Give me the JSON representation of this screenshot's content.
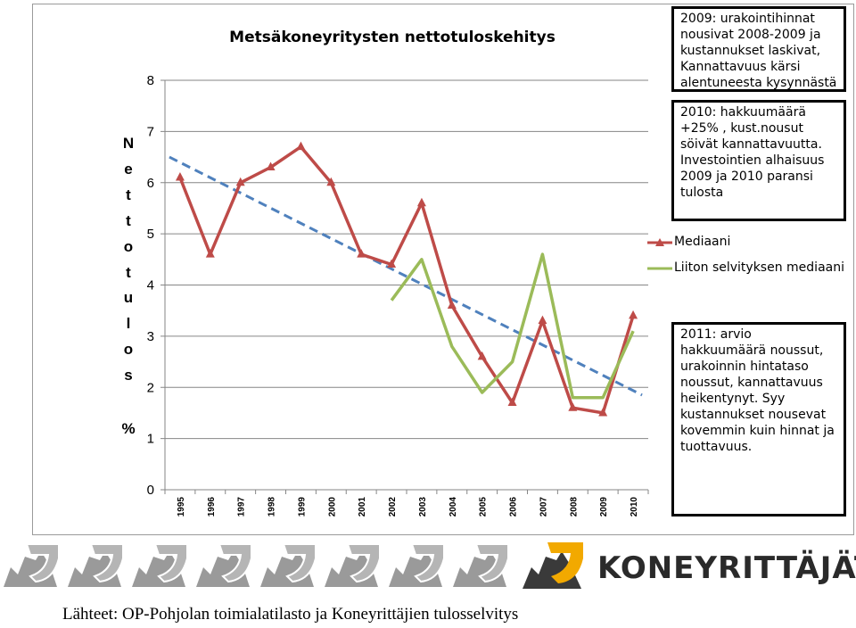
{
  "chart_data": {
    "type": "line",
    "title": "Metsäkoneyritysten nettotuloskehitys",
    "ylabel_letters": [
      "N",
      "e",
      "t",
      "t",
      "o",
      "t",
      "u",
      "l",
      "o",
      "s"
    ],
    "yunit": "%",
    "ylim": [
      0,
      8
    ],
    "yticks": [
      0,
      1,
      2,
      3,
      4,
      5,
      6,
      7,
      8
    ],
    "x": [
      "1995",
      "1996",
      "1997",
      "1998",
      "1999",
      "2000",
      "2001",
      "2002",
      "2003",
      "2004",
      "2005",
      "2006",
      "2007",
      "2008",
      "2009",
      "2010"
    ],
    "grid": true,
    "legend_position": "right",
    "series": [
      {
        "name": "Mediaani",
        "color": "#be4b48",
        "marker": "triangle",
        "values": [
          6.1,
          4.6,
          6.0,
          6.3,
          6.7,
          6.0,
          4.6,
          4.4,
          5.6,
          3.6,
          2.6,
          1.7,
          3.3,
          1.6,
          1.5,
          3.4
        ]
      },
      {
        "name": "Liiton selvityksen mediaani",
        "color": "#9bbb59",
        "marker": "none",
        "values": [
          null,
          null,
          null,
          null,
          null,
          null,
          null,
          3.7,
          4.5,
          2.8,
          1.9,
          2.5,
          4.6,
          1.8,
          1.8,
          3.1
        ]
      }
    ],
    "trendline": {
      "color": "#4f81bd",
      "style": "dashed",
      "start": 6.5,
      "end": 1.85
    }
  },
  "notes": {
    "note_2009": "2009: urakointihinnat\nnousivat 2008-2009 ja\nkustannukset laskivat,\nKannattavuus kärsi\nalentuneesta kysynnästä",
    "note_2010": "2010:  hakkuumäärä\n+25% , kust.nousut\nsöivät kannattavuutta.\nInvestointien alhaisuus\n2009 ja 2010  paransi\ntulosta",
    "note_2011": "2011: arvio\nhakkuumäärä noussut,\nurakoinnin hintataso\nnoussut, kannattavuus\nheikentynyt. Syy\nkustannukset nousevat\nkovemmin kuin hinnat ja\ntuottavuus."
  },
  "brand": {
    "name": "KONEYRITTÄJÄT",
    "accent": "#f2a900",
    "gear_color": "#b5b5b5"
  },
  "source": "Lähteet: OP-Pohjolan toimialatilasto ja Koneyrittäjien tulosselvitys"
}
